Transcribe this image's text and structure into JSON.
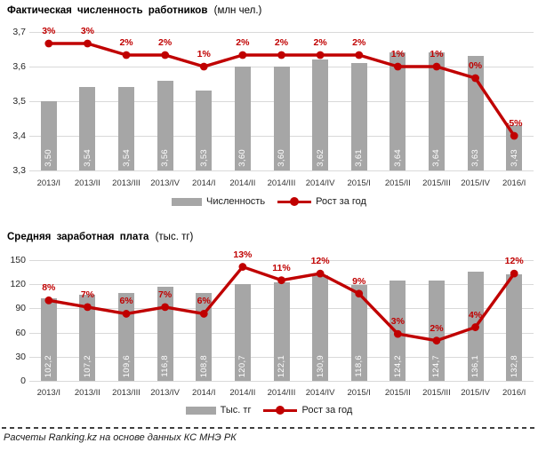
{
  "colors": {
    "bar": "#a6a6a6",
    "line": "#c00000",
    "pct_label": "#c00000",
    "grid": "#d9d9d9",
    "bar_value_text": "#ffffff"
  },
  "footer": {
    "text": "Расчеты Ranking.kz на основе данных КС МНЭ РК"
  },
  "chart_data": [
    {
      "type": "bar",
      "combo": "bar+line",
      "title": "Фактическая численность работников",
      "unit": "(млн чел.)",
      "categories": [
        "2013/I",
        "2013/II",
        "2013/III",
        "2013/IV",
        "2014/I",
        "2014/II",
        "2014/III",
        "2014/IV",
        "2015/I",
        "2015/II",
        "2015/III",
        "2015/IV",
        "2016/I"
      ],
      "bar_series": {
        "name": "Численность",
        "values": [
          3.5,
          3.54,
          3.54,
          3.56,
          3.53,
          3.6,
          3.6,
          3.62,
          3.61,
          3.64,
          3.64,
          3.63,
          3.43
        ],
        "labels": [
          "3,50",
          "3,54",
          "3,54",
          "3,56",
          "3,53",
          "3,60",
          "3,60",
          "3,62",
          "3,61",
          "3,64",
          "3,64",
          "3,63",
          "3,43"
        ]
      },
      "line_series": {
        "name": "Рост за год",
        "values_pct": [
          3,
          3,
          2,
          2,
          1,
          2,
          2,
          2,
          2,
          1,
          1,
          0,
          -5
        ],
        "labels": [
          "3%",
          "3%",
          "2%",
          "2%",
          "1%",
          "2%",
          "2%",
          "2%",
          "2%",
          "1%",
          "1%",
          "0%",
          "-5%"
        ]
      },
      "y_axis": {
        "min": 3.3,
        "max": 3.7,
        "ticks": [
          {
            "value": 3.7,
            "label": "3,7"
          },
          {
            "value": 3.6,
            "label": "3,6"
          },
          {
            "value": 3.5,
            "label": "3,5"
          },
          {
            "value": 3.4,
            "label": "3,4"
          },
          {
            "value": 3.3,
            "label": "3,3"
          }
        ]
      },
      "secondary_axis": {
        "min": -8,
        "max": 4
      },
      "grid": true,
      "legend_position": "bottom"
    },
    {
      "type": "bar",
      "combo": "bar+line",
      "title": "Средняя заработная плата",
      "unit": "(тыс. тг)",
      "categories": [
        "2013/I",
        "2013/II",
        "2013/III",
        "2013/IV",
        "2014/I",
        "2014/II",
        "2014/III",
        "2014/IV",
        "2015/I",
        "2015/II",
        "2015/III",
        "2015/IV",
        "2016/I"
      ],
      "bar_series": {
        "name": "Тыс. тг",
        "values": [
          102.2,
          107.2,
          109.6,
          116.8,
          108.8,
          120.7,
          122.1,
          130.9,
          118.6,
          124.2,
          124.7,
          136.1,
          132.8
        ],
        "labels": [
          "102,2",
          "107,2",
          "109,6",
          "116,8",
          "108,8",
          "120,7",
          "122,1",
          "130,9",
          "118,6",
          "124,2",
          "124,7",
          "136,1",
          "132,8"
        ]
      },
      "line_series": {
        "name": "Рост за год",
        "values_pct": [
          8,
          7,
          6,
          7,
          6,
          13,
          11,
          12,
          9,
          3,
          2,
          4,
          12
        ],
        "labels": [
          "8%",
          "7%",
          "6%",
          "7%",
          "6%",
          "13%",
          "11%",
          "12%",
          "9%",
          "3%",
          "2%",
          "4%",
          "12%"
        ]
      },
      "y_axis": {
        "min": 0,
        "max": 150,
        "ticks": [
          {
            "value": 150,
            "label": "150"
          },
          {
            "value": 120,
            "label": "120"
          },
          {
            "value": 90,
            "label": "90"
          },
          {
            "value": 60,
            "label": "60"
          },
          {
            "value": 30,
            "label": "30"
          },
          {
            "value": 0,
            "label": "0"
          }
        ]
      },
      "secondary_axis": {
        "min": -4,
        "max": 14
      },
      "grid": true,
      "legend_position": "bottom"
    }
  ]
}
